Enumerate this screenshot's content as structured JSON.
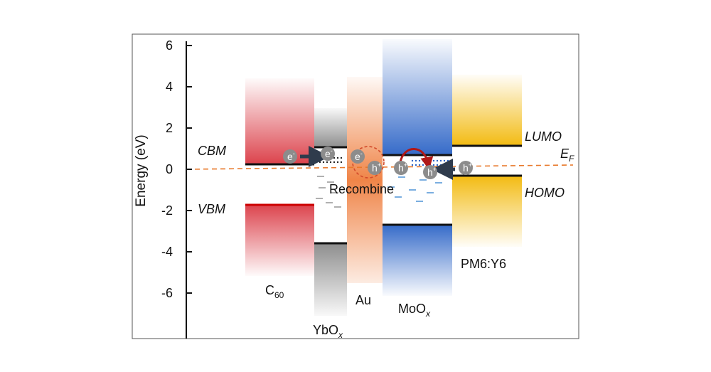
{
  "axis": {
    "ylabel": "Energy (eV)",
    "ticks": [
      "6",
      "4",
      "2",
      "0",
      "-2",
      "-4",
      "-6"
    ],
    "tick_values": [
      6,
      4,
      2,
      0,
      -2,
      -4,
      -6
    ]
  },
  "labels": {
    "cbm": "CBM",
    "vbm": "VBM",
    "lumo": "LUMO",
    "homo": "HOMO",
    "ef_main": "E",
    "ef_sub": "F",
    "recombine": "Recombine"
  },
  "materials": {
    "c60_main": "C",
    "c60_sub": "60",
    "ybox_main": "YbO",
    "ybox_sub": "x",
    "au": "Au",
    "moox_main": "MoO",
    "moox_sub": "x",
    "pm6y6": "PM6:Y6"
  },
  "carriers": {
    "electron": "e",
    "hole": "h",
    "minus": "-",
    "plus": "+"
  },
  "levels": {
    "c60": {
      "cbm": 0.2,
      "vbm": -1.7
    },
    "ybox": {
      "cbm": 1.0,
      "vbm": -3.6
    },
    "au": {
      "fermi": 0
    },
    "moox": {
      "cbm": 0.6,
      "vbm": -2.7
    },
    "pm6y6": {
      "lumo": 1.1,
      "homo": -0.3
    }
  },
  "colors": {
    "c60": "#d6232e",
    "ybox": "#8a8a8a",
    "au": "#ef7e3e",
    "moox": "#2b63c6",
    "pm6y6": "#f2b705",
    "fermi_line": "#e8782a",
    "carrier": "#8c8c8c",
    "recombine_circle": "#d24a2a",
    "arrow_dark": "#2f3b4c",
    "hop_arrow": "#b01818",
    "trap_gray": "#b0b0b0",
    "trap_blue": "#7aaee0"
  }
}
